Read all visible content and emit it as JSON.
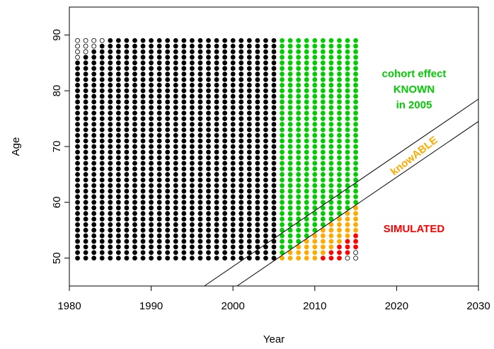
{
  "chart_data": {
    "type": "scatter",
    "title": "",
    "xlabel": "Year",
    "ylabel": "Age",
    "xlim": [
      1980,
      2030
    ],
    "ylim": [
      45,
      95
    ],
    "xticks": [
      "1980",
      "1990",
      "2000",
      "2010",
      "2020",
      "2030"
    ],
    "yticks": [
      "50",
      "60",
      "70",
      "80",
      "90"
    ],
    "grid": false,
    "legend": "none",
    "colors": {
      "known": "#000000",
      "known_2005": "#00cc00",
      "knowable": "#ffaa00",
      "simulated": "#ff0000",
      "unobserved": "#ffffff"
    },
    "series": [
      {
        "name": "cohort effect KNOWN in 2005",
        "rule": "birth cohort (year - age) >= 1896 and <= 1955; black for year <= 2005, green for year > 2005",
        "year_range": [
          1981,
          2015
        ],
        "age_range": [
          50,
          89
        ]
      },
      {
        "name": "knowABLE",
        "rule": "birth cohort 1956 to 1960, years 2006 to 2015",
        "cohorts": [
          1956,
          1960
        ]
      },
      {
        "name": "SIMULATED",
        "rule": "birth cohort 1961 to 1963",
        "cohorts": [
          1961,
          1963
        ]
      }
    ],
    "boundary_lines": [
      {
        "points": [
          [
            1996.5,
            45
          ],
          [
            2030,
            78.5
          ]
        ],
        "cohort": 1951.5
      },
      {
        "points": [
          [
            2000.5,
            45
          ],
          [
            2030,
            74.5
          ]
        ],
        "cohort": 1955.5
      }
    ],
    "annotations": {
      "known": [
        "cohort effect",
        "KNOWN",
        "in 2005"
      ],
      "knowable": "knowABLE",
      "simulated": "SIMULATED"
    }
  }
}
